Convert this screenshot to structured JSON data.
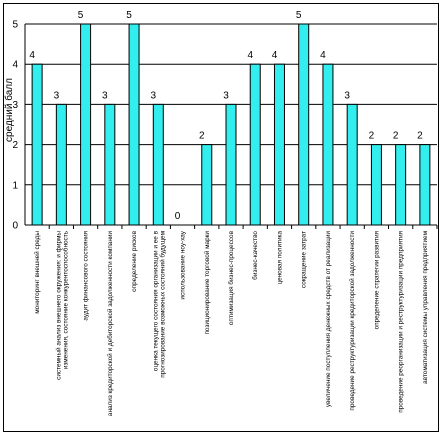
{
  "chart_data": {
    "type": "bar",
    "ylabel": "средний балл",
    "ylim": [
      0,
      5
    ],
    "yticks": [
      "0",
      "1",
      "2",
      "3",
      "4",
      "5"
    ],
    "grid": true,
    "bar_color": "#33EEEE",
    "categories": [
      "мониторинг внешней среды",
      "системный анализ внешнего окружения: изменения, состояние и конкурентоспособность фирмы",
      "аудит финансового состояния",
      "анализ кредиторской и дебиторской задолженности компании",
      "определение рисков",
      "оценка текущего состояния организации и прогнозирование ее возможных состояний в будущем",
      "использование ноу-хау",
      "позиционирование торговой марки",
      "оптимизация бизнес-процессов",
      "бизнес-качество",
      "ценовая политика",
      "сокращение затрат",
      "увеличение поступления денежных средств от реализации",
      "проведение реструктуризации кредиторской задолженности",
      "определение стратегии развития",
      "проведение реорганизации и реструктуризации предприятия",
      "автоматизация системы управления предприятием"
    ],
    "values": [
      4,
      3,
      5,
      3,
      5,
      3,
      0,
      2,
      3,
      4,
      4,
      5,
      4,
      3,
      2,
      2,
      2
    ],
    "data_labels": [
      "4",
      "3",
      "5",
      "3",
      "5",
      "3",
      "0",
      "2",
      "3",
      "4",
      "4",
      "5",
      "4",
      "3",
      "2",
      "2",
      "2"
    ]
  }
}
